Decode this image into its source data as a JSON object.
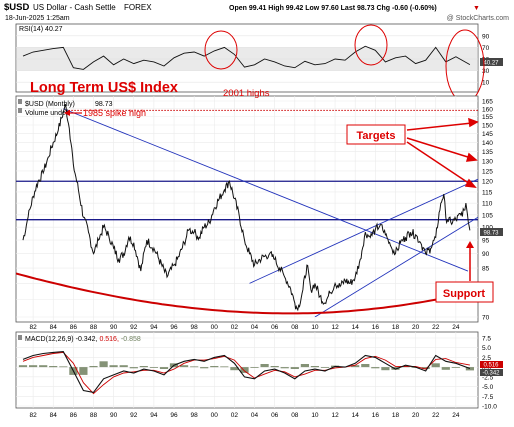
{
  "header": {
    "symbol": "$USD",
    "name": "US Dollar - Cash Settle",
    "exchange": "FOREX",
    "date": "18-Jun-2025 1:25am",
    "stats_line": "Open 99.41  High 99.42  Low 97.60  Last 98.73  Chg -0.60 (-0.60%)",
    "down_marker": "▼",
    "watermark": "@ StockCharts.com"
  },
  "annotations": {
    "title": "Long Term US$ Index",
    "highs_2001": "2001 highs",
    "spike_1985": "1985 spike high",
    "targets": "Targets",
    "support": "Support"
  },
  "colors": {
    "price": "#111111",
    "price_down": "#cc0000",
    "annotation_red": "#dd0000",
    "blue_line": "#2233bb",
    "navy_line": "#1a1a8a",
    "rsi_band": "#d9d9d9",
    "macd_hist": "#6e7f5e"
  },
  "chart_data": [
    {
      "type": "line",
      "panel": "rsi",
      "legend": "RSI(14) 40.27",
      "last_value_label": "40.27",
      "ylim": [
        0,
        100
      ],
      "y_ticks": [
        "90",
        "70",
        "50",
        "30",
        "10"
      ],
      "band": [
        30,
        70
      ],
      "x": [
        1981,
        1982,
        1983,
        1984,
        1985,
        1986,
        1987,
        1988,
        1989,
        1990,
        1991,
        1992,
        1993,
        1994,
        1995,
        1996,
        1997,
        1998,
        1999,
        2000,
        2001,
        2002,
        2003,
        2004,
        2005,
        2006,
        2007,
        2008,
        2009,
        2010,
        2011,
        2012,
        2013,
        2014,
        2015,
        2016,
        2017,
        2018,
        2019,
        2020,
        2021,
        2022,
        2023,
        2024,
        2025.4
      ],
      "values": [
        55,
        62,
        65,
        68,
        70,
        35,
        32,
        45,
        55,
        40,
        50,
        42,
        48,
        45,
        38,
        52,
        60,
        62,
        55,
        64,
        70,
        58,
        36,
        40,
        50,
        45,
        38,
        35,
        46,
        40,
        42,
        50,
        48,
        62,
        72,
        65,
        45,
        52,
        55,
        42,
        48,
        70,
        45,
        54,
        40.27
      ]
    },
    {
      "type": "line",
      "panel": "price",
      "legend_symbol": "$USD (Monthly)",
      "legend_value": "98.73",
      "legend_volume": "Volume undef",
      "last_value_label": "98.73",
      "yscale": "log",
      "ylim": [
        70,
        165
      ],
      "y_ticks": [
        "165",
        "160",
        "155",
        "150",
        "145",
        "140",
        "135",
        "130",
        "125",
        "120",
        "115",
        "110",
        "105",
        "100",
        "95",
        "90",
        "85",
        "80",
        "75",
        "70"
      ],
      "x_ticks": [
        "82",
        "84",
        "86",
        "88",
        "90",
        "92",
        "94",
        "96",
        "98",
        "00",
        "02",
        "04",
        "06",
        "08",
        "10",
        "12",
        "14",
        "16",
        "18",
        "20",
        "22",
        "24"
      ],
      "x": [
        1981.0,
        1981.5,
        1982.0,
        1982.5,
        1983.0,
        1983.5,
        1984.0,
        1984.5,
        1985.0,
        1985.2,
        1985.6,
        1986.0,
        1986.5,
        1987.0,
        1987.5,
        1988.0,
        1988.5,
        1989.0,
        1989.5,
        1990.0,
        1990.5,
        1991.0,
        1991.5,
        1992.0,
        1992.7,
        1993.3,
        1994.0,
        1994.5,
        1995.3,
        1996.0,
        1996.5,
        1997.0,
        1997.5,
        1998.0,
        1998.5,
        1999.0,
        1999.5,
        2000.0,
        2000.5,
        2001.0,
        2001.5,
        2002.0,
        2002.5,
        2003.0,
        2003.5,
        2004.0,
        2004.5,
        2005.0,
        2005.5,
        2006.0,
        2006.5,
        2007.0,
        2007.5,
        2008.0,
        2008.3,
        2008.8,
        2009.2,
        2009.6,
        2010.0,
        2010.5,
        2011.0,
        2011.5,
        2012.0,
        2012.5,
        2013.0,
        2013.5,
        2014.0,
        2014.5,
        2015.0,
        2015.5,
        2016.0,
        2016.5,
        2017.0,
        2017.5,
        2018.0,
        2018.5,
        2019.0,
        2019.5,
        2020.0,
        2020.5,
        2021.0,
        2021.5,
        2022.0,
        2022.5,
        2022.8,
        2023.0,
        2023.5,
        2024.0,
        2024.5,
        2024.8,
        2025.0,
        2025.4
      ],
      "values": [
        95,
        104,
        113,
        120,
        124,
        132,
        140,
        147,
        158,
        163,
        148,
        128,
        116,
        104,
        98,
        90,
        95,
        100,
        97,
        92,
        88,
        90,
        96,
        94,
        84,
        95,
        92,
        88,
        82,
        86,
        89,
        94,
        99,
        98,
        96,
        100,
        102,
        108,
        112,
        116,
        120,
        112,
        104,
        95,
        90,
        86,
        88,
        89,
        90,
        88,
        85,
        82,
        79,
        74,
        72,
        78,
        86,
        78,
        80,
        76,
        74,
        77,
        80,
        79,
        81,
        80,
        82,
        88,
        98,
        96,
        99,
        101,
        97,
        93,
        90,
        94,
        96,
        98,
        97,
        94,
        90,
        92,
        96,
        110,
        114,
        104,
        102,
        103,
        105,
        107,
        110,
        98.73
      ]
    },
    {
      "type": "line",
      "panel": "macd",
      "legend": "MACD(12,26,9) -0.342, 0.516, -0.858",
      "legend_parts": {
        "label": "MACD(12,26,9)",
        "macd": "-0.342,",
        "signal": "0.516,",
        "hist": "-0.858"
      },
      "last_value_labels": [
        "0.516",
        "-0.342"
      ],
      "ylim": [
        -10,
        7.5
      ],
      "y_ticks": [
        "7.5",
        "5.0",
        "2.5",
        "0.0",
        "-2.5",
        "-5.0",
        "-7.5",
        "-10.0"
      ],
      "x_ticks": [
        "82",
        "84",
        "86",
        "88",
        "90",
        "92",
        "94",
        "96",
        "98",
        "00",
        "02",
        "04",
        "06",
        "08",
        "10",
        "12",
        "14",
        "16",
        "18",
        "20",
        "22",
        "24"
      ],
      "x": [
        1981,
        1982,
        1983,
        1984,
        1985,
        1986,
        1987,
        1988,
        1989,
        1990,
        1991,
        1992,
        1993,
        1994,
        1995,
        1996,
        1997,
        1998,
        1999,
        2000,
        2001,
        2002,
        2003,
        2004,
        2005,
        2006,
        2007,
        2008,
        2009,
        2010,
        2011,
        2012,
        2013,
        2014,
        2015,
        2016,
        2017,
        2018,
        2019,
        2020,
        2021,
        2022,
        2023,
        2024,
        2025.4
      ],
      "series": [
        {
          "name": "MACD",
          "values": [
            2.0,
            3.0,
            3.5,
            3.8,
            4.0,
            -1.0,
            -6.0,
            -6.5,
            -3.0,
            -2.0,
            -1.0,
            -1.5,
            -0.5,
            -1.0,
            -2.0,
            0.5,
            1.5,
            2.0,
            1.5,
            2.5,
            3.0,
            1.0,
            -2.5,
            -3.0,
            -1.0,
            -0.5,
            -1.5,
            -3.0,
            -1.0,
            -0.5,
            -1.0,
            0.2,
            0.0,
            1.0,
            3.0,
            2.5,
            1.0,
            -0.5,
            0.5,
            0.0,
            -1.0,
            3.0,
            1.5,
            1.0,
            -0.342
          ]
        },
        {
          "name": "Signal",
          "values": [
            1.5,
            2.5,
            3.0,
            3.5,
            3.8,
            1.0,
            -4.0,
            -6.8,
            -4.5,
            -2.5,
            -1.5,
            -1.2,
            -0.8,
            -0.8,
            -1.5,
            -0.5,
            1.0,
            1.8,
            1.8,
            2.2,
            2.8,
            1.8,
            -1.0,
            -2.8,
            -1.8,
            -0.8,
            -1.2,
            -2.5,
            -1.8,
            -0.8,
            -0.8,
            -0.2,
            0.0,
            0.5,
            2.2,
            2.8,
            1.8,
            0.2,
            0.2,
            0.2,
            -0.5,
            2.0,
            2.2,
            1.2,
            0.516
          ]
        }
      ],
      "histogram": [
        0.5,
        0.5,
        0.5,
        0.3,
        0.2,
        -2.0,
        -2.0,
        0.3,
        1.5,
        0.5,
        0.5,
        -0.3,
        0.3,
        -0.2,
        -0.5,
        1.0,
        0.5,
        0.2,
        -0.3,
        0.3,
        0.2,
        -0.8,
        -1.5,
        -0.2,
        0.8,
        0.3,
        -0.3,
        -0.5,
        0.8,
        0.3,
        -0.2,
        0.4,
        0.0,
        0.5,
        0.8,
        -0.3,
        -0.8,
        -0.7,
        0.3,
        -0.2,
        -0.5,
        1.0,
        -0.7,
        -0.2,
        -0.858
      ]
    }
  ]
}
